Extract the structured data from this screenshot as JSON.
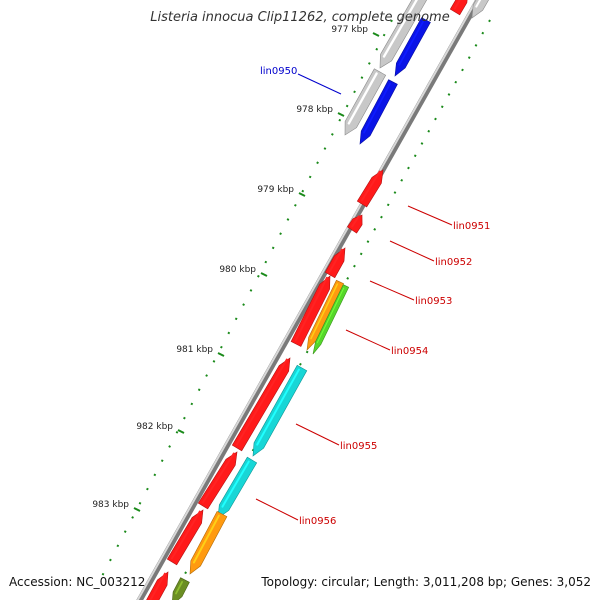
{
  "title": "Listeria innocua Clip11262, complete genome",
  "footer": {
    "accession": "Accession: NC_003212",
    "summary": "Topology: circular; Length: 3,011,208 bp; Genes: 3,052"
  },
  "scale": {
    "ticks": [
      "977 kbp",
      "978 kbp",
      "979 kbp",
      "980 kbp",
      "981 kbp",
      "982 kbp",
      "983 kbp"
    ]
  },
  "genes": [
    {
      "name": "lin0950",
      "color": "#0000cc"
    },
    {
      "name": "lin0951",
      "color": "#cc0000"
    },
    {
      "name": "lin0952",
      "color": "#cc0000"
    },
    {
      "name": "lin0953",
      "color": "#cc0000"
    },
    {
      "name": "lin0954",
      "color": "#cc0000"
    },
    {
      "name": "lin0955",
      "color": "#cc0000"
    },
    {
      "name": "lin0956",
      "color": "#cc0000"
    }
  ],
  "colors": {
    "red": "#ff1a1a",
    "blue": "#0a14e6",
    "grey": "#c8c8c8",
    "cyan": "#18d6d6",
    "orange": "#ff9a10",
    "green": "#55d62a",
    "olive": "#6b8e23",
    "backbone": "#8c8c8c",
    "tick": "#1a8a1a"
  }
}
